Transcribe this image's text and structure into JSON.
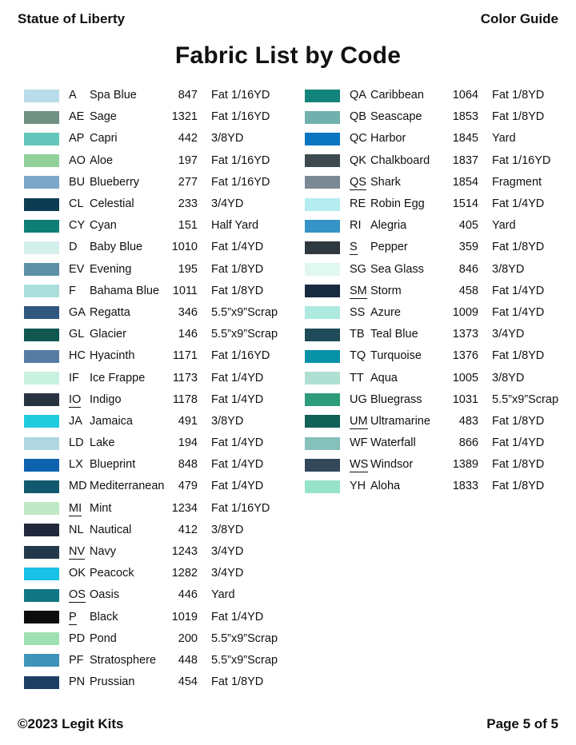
{
  "header": {
    "left": "Statue of Liberty",
    "right": "Color Guide"
  },
  "title": "Fabric List by Code",
  "footer": {
    "left": "©2023 Legit Kits",
    "right": "Page 5 of 5"
  },
  "columns": [
    {
      "rows": [
        {
          "code": "A",
          "underline": false,
          "name": "Spa Blue",
          "num": "847",
          "qty": "Fat 1/16YD",
          "color": "#B9DCEA"
        },
        {
          "code": "AE",
          "underline": false,
          "name": "Sage",
          "num": "1321",
          "qty": "Fat 1/16YD",
          "color": "#6F9181"
        },
        {
          "code": "AP",
          "underline": false,
          "name": "Capri",
          "num": "442",
          "qty": "3/8YD",
          "color": "#63C5BB"
        },
        {
          "code": "AO",
          "underline": false,
          "name": "Aloe",
          "num": "197",
          "qty": "Fat 1/16YD",
          "color": "#92D19A"
        },
        {
          "code": "BU",
          "underline": false,
          "name": "Blueberry",
          "num": "277",
          "qty": "Fat 1/16YD",
          "color": "#7DA6C8"
        },
        {
          "code": "CL",
          "underline": false,
          "name": "Celestial",
          "num": "233",
          "qty": "3/4YD",
          "color": "#0C3C51"
        },
        {
          "code": "CY",
          "underline": false,
          "name": "Cyan",
          "num": "151",
          "qty": "Half Yard",
          "color": "#0F7F75"
        },
        {
          "code": "D",
          "underline": false,
          "name": "Baby Blue",
          "num": "1010",
          "qty": "Fat 1/4YD",
          "color": "#D4F0ED"
        },
        {
          "code": "EV",
          "underline": false,
          "name": "Evening",
          "num": "195",
          "qty": "Fat 1/8YD",
          "color": "#5D90A5"
        },
        {
          "code": "F",
          "underline": false,
          "name": "Bahama Blue",
          "num": "1011",
          "qty": "Fat 1/8YD",
          "color": "#AADFDB"
        },
        {
          "code": "GA",
          "underline": false,
          "name": "Regatta",
          "num": "346",
          "qty": "5.5”x9”Scrap",
          "color": "#30577E"
        },
        {
          "code": "GL",
          "underline": false,
          "name": "Glacier",
          "num": "146",
          "qty": "5.5”x9”Scrap",
          "color": "#10584F"
        },
        {
          "code": "HC",
          "underline": false,
          "name": "Hyacinth",
          "num": "1171",
          "qty": "Fat 1/16YD",
          "color": "#577CA3"
        },
        {
          "code": "IF",
          "underline": false,
          "name": "Ice Frappe",
          "num": "1173",
          "qty": "Fat 1/4YD",
          "color": "#C9F1DF"
        },
        {
          "code": "IO",
          "underline": true,
          "name": "Indigo",
          "num": "1178",
          "qty": "Fat 1/4YD",
          "color": "#273340"
        },
        {
          "code": "JA",
          "underline": false,
          "name": "Jamaica",
          "num": "491",
          "qty": "3/8YD",
          "color": "#1FCCDE"
        },
        {
          "code": "LD",
          "underline": false,
          "name": "Lake",
          "num": "194",
          "qty": "Fat 1/4YD",
          "color": "#B0D7E1"
        },
        {
          "code": "LX",
          "underline": false,
          "name": "Blueprint",
          "num": "848",
          "qty": "Fat 1/4YD",
          "color": "#0E63AF"
        },
        {
          "code": "MD",
          "underline": false,
          "name": "Mediterranean",
          "num": "479",
          "qty": "Fat 1/4YD",
          "color": "#12586F"
        },
        {
          "code": "MI",
          "underline": true,
          "name": "Mint",
          "num": "1234",
          "qty": "Fat 1/16YD",
          "color": "#BFE9C6"
        },
        {
          "code": "NL",
          "underline": false,
          "name": "Nautical",
          "num": "412",
          "qty": "3/8YD",
          "color": "#21273D"
        },
        {
          "code": "NV",
          "underline": true,
          "name": "Navy",
          "num": "1243",
          "qty": "3/4YD",
          "color": "#23374A"
        },
        {
          "code": "OK",
          "underline": false,
          "name": "Peacock",
          "num": "1282",
          "qty": "3/4YD",
          "color": "#18C1E5"
        },
        {
          "code": "OS",
          "underline": true,
          "name": "Oasis",
          "num": "446",
          "qty": "Yard",
          "color": "#117683"
        },
        {
          "code": "P",
          "underline": true,
          "name": "Black",
          "num": "1019",
          "qty": "Fat 1/4YD",
          "color": "#0B0D0F"
        },
        {
          "code": "PD",
          "underline": false,
          "name": "Pond",
          "num": "200",
          "qty": "5.5”x9”Scrap",
          "color": "#A0E1B3"
        },
        {
          "code": "PF",
          "underline": false,
          "name": "Stratosphere",
          "num": "448",
          "qty": "5.5”x9”Scrap",
          "color": "#3F94B9"
        },
        {
          "code": "PN",
          "underline": false,
          "name": "Prussian",
          "num": "454",
          "qty": "Fat 1/8YD",
          "color": "#1D3E62"
        }
      ]
    },
    {
      "rows": [
        {
          "code": "QA",
          "underline": false,
          "name": "Caribbean",
          "num": "1064",
          "qty": "Fat 1/8YD",
          "color": "#13847B"
        },
        {
          "code": "QB",
          "underline": false,
          "name": "Seascape",
          "num": "1853",
          "qty": "Fat 1/8YD",
          "color": "#70B1AD"
        },
        {
          "code": "QC",
          "underline": false,
          "name": "Harbor",
          "num": "1845",
          "qty": "Yard",
          "color": "#0B75C1"
        },
        {
          "code": "QK",
          "underline": false,
          "name": "Chalkboard",
          "num": "1837",
          "qty": "Fat 1/16YD",
          "color": "#3D4B4F"
        },
        {
          "code": "QS",
          "underline": true,
          "name": "Shark",
          "num": "1854",
          "qty": "Fragment",
          "color": "#7B8995"
        },
        {
          "code": "RE",
          "underline": false,
          "name": "Robin Egg",
          "num": "1514",
          "qty": "Fat 1/4YD",
          "color": "#B4ECEF"
        },
        {
          "code": "RI",
          "underline": false,
          "name": "Alegria",
          "num": "405",
          "qty": "Yard",
          "color": "#3594C5"
        },
        {
          "code": "S",
          "underline": true,
          "name": "Pepper",
          "num": "359",
          "qty": "Fat 1/8YD",
          "color": "#2E393F"
        },
        {
          "code": "SG",
          "underline": false,
          "name": "Sea Glass",
          "num": "846",
          "qty": "3/8YD",
          "color": "#E0F8EF"
        },
        {
          "code": "SM",
          "underline": true,
          "name": "Storm",
          "num": "458",
          "qty": "Fat 1/4YD",
          "color": "#182A40"
        },
        {
          "code": "SS",
          "underline": false,
          "name": "Azure",
          "num": "1009",
          "qty": "Fat 1/4YD",
          "color": "#ADE9DE"
        },
        {
          "code": "TB",
          "underline": false,
          "name": "Teal Blue",
          "num": "1373",
          "qty": "3/4YD",
          "color": "#1F4B58"
        },
        {
          "code": "TQ",
          "underline": false,
          "name": "Turquoise",
          "num": "1376",
          "qty": "Fat 1/8YD",
          "color": "#0892A7"
        },
        {
          "code": "TT",
          "underline": false,
          "name": "Aqua",
          "num": "1005",
          "qty": "3/8YD",
          "color": "#B0E0D3"
        },
        {
          "code": "UG",
          "underline": false,
          "name": "Bluegrass",
          "num": "1031",
          "qty": "5.5”x9”Scrap",
          "color": "#2C9C7A"
        },
        {
          "code": "UM",
          "underline": true,
          "name": "Ultramarine",
          "num": "483",
          "qty": "Fat 1/8YD",
          "color": "#126156"
        },
        {
          "code": "WF",
          "underline": false,
          "name": "Waterfall",
          "num": "866",
          "qty": "Fat 1/4YD",
          "color": "#85C0BA"
        },
        {
          "code": "WS",
          "underline": true,
          "name": "Windsor",
          "num": "1389",
          "qty": "Fat 1/8YD",
          "color": "#33485B"
        },
        {
          "code": "YH",
          "underline": false,
          "name": "Aloha",
          "num": "1833",
          "qty": "Fat 1/8YD",
          "color": "#97E3C9"
        }
      ]
    }
  ]
}
